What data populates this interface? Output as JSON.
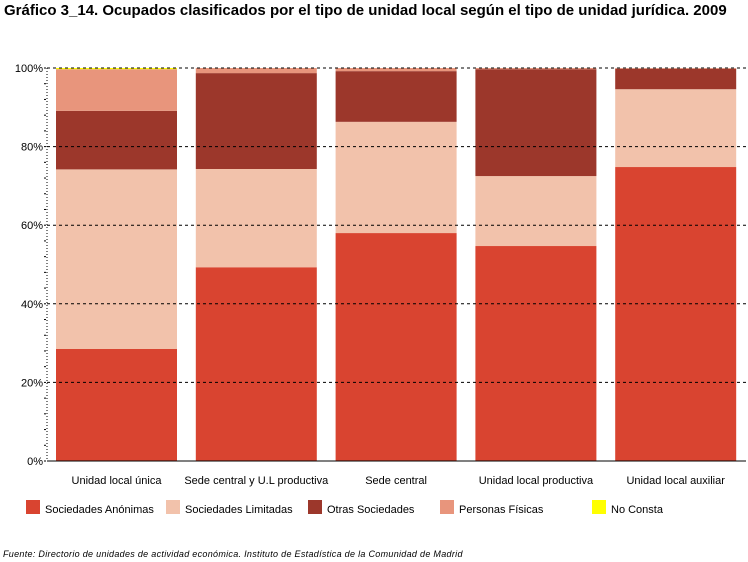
{
  "title": "Gráfico 3_14. Ocupados clasificados por el tipo de unidad local según el tipo de unidad jurídica. 2009",
  "source": "Fuente: Directorio de unidades de actividad económica. Instituto de Estadística de la Comunidad de Madrid",
  "chart_data": {
    "type": "bar",
    "stacked": true,
    "percent": true,
    "categories": [
      "Unidad local única",
      "Sede central y U.L productiva",
      "Sede central",
      "Unidad local productiva",
      "Unidad local auxiliar"
    ],
    "series": [
      {
        "name": "Sociedades Anónimas",
        "color": "#d94430",
        "values": [
          28.5,
          49.3,
          58.0,
          54.7,
          74.8
        ]
      },
      {
        "name": "Sociedades Limitadas",
        "color": "#f2c2ab",
        "values": [
          45.7,
          25.0,
          28.3,
          17.8,
          19.8
        ]
      },
      {
        "name": "Otras Sociedades",
        "color": "#9c372b",
        "values": [
          14.9,
          24.4,
          12.9,
          27.2,
          5.2
        ]
      },
      {
        "name": "Personas Físicas",
        "color": "#e8957c",
        "values": [
          10.6,
          1.3,
          0.8,
          0.3,
          0.2
        ]
      },
      {
        "name": "No Consta",
        "color": "#ffff00",
        "values": [
          0.3,
          0.0,
          0.0,
          0.0,
          0.0
        ]
      }
    ],
    "ylim": [
      0,
      100
    ],
    "yticks": [
      0,
      20,
      40,
      60,
      80,
      100
    ],
    "ytick_labels": [
      "0%",
      "20%",
      "40%",
      "60%",
      "80%",
      "100%"
    ],
    "grid": true,
    "legend_position": "bottom"
  }
}
